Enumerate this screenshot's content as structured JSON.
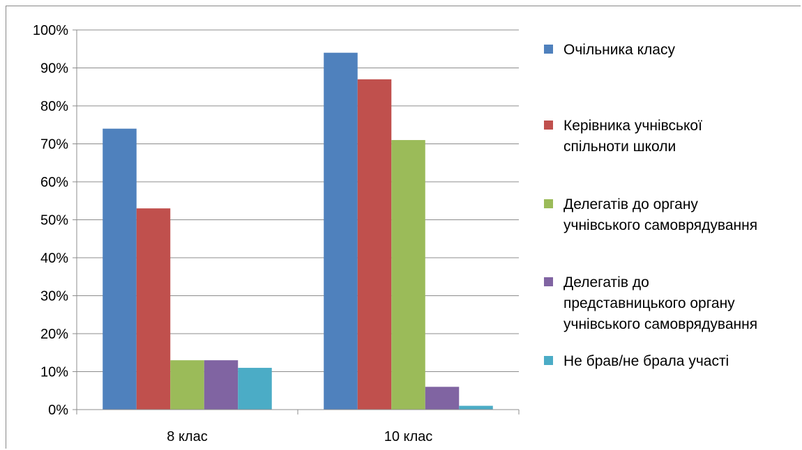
{
  "chart_data": {
    "type": "bar",
    "categories": [
      "8 клас",
      "10 клас"
    ],
    "series": [
      {
        "name": "Очільника класу",
        "values": [
          74,
          94
        ],
        "color": "#4F81BD"
      },
      {
        "name": "Керівника учнівської спільноти школи",
        "values": [
          53,
          87
        ],
        "color": "#C0504D"
      },
      {
        "name": "Делегатів до органу учнівського самоврядування",
        "values": [
          13,
          71
        ],
        "color": "#9BBB59"
      },
      {
        "name": "Делегатів до представницького органу учнівського самоврядування",
        "values": [
          13,
          6
        ],
        "color": "#8064A2"
      },
      {
        "name": "Не брав/не брала участі",
        "values": [
          11,
          1
        ],
        "color": "#4BACC6"
      }
    ],
    "legend_lines": [
      [
        "Очільника класу"
      ],
      [
        "Керівника учнівської",
        "спільноти школи"
      ],
      [
        "Делегатів до органу",
        "учнівського самоврядування"
      ],
      [
        "Делегатів до",
        "представницького органу",
        "учнівського самоврядування"
      ],
      [
        "Не брав/не брала участі"
      ]
    ],
    "y_ticks": [
      "0%",
      "10%",
      "20%",
      "30%",
      "40%",
      "50%",
      "60%",
      "70%",
      "80%",
      "90%",
      "100%"
    ],
    "ylim": [
      0,
      100
    ],
    "grid": true,
    "legend_position": "right",
    "title": "",
    "xlabel": "",
    "ylabel": ""
  }
}
